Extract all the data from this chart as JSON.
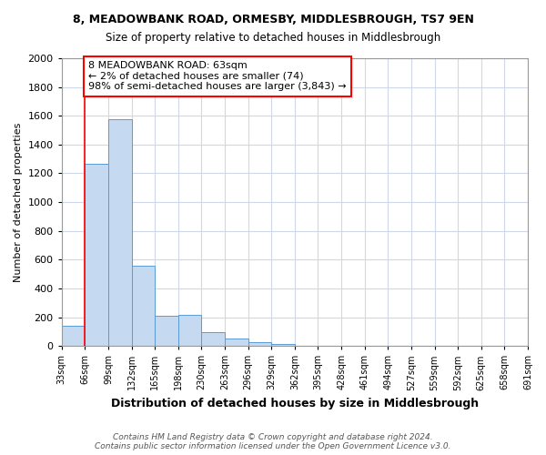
{
  "title_line1": "8, MEADOWBANK ROAD, ORMESBY, MIDDLESBROUGH, TS7 9EN",
  "title_line2": "Size of property relative to detached houses in Middlesbrough",
  "xlabel": "Distribution of detached houses by size in Middlesbrough",
  "ylabel": "Number of detached properties",
  "bar_values": [
    140,
    1265,
    1575,
    560,
    210,
    215,
    95,
    50,
    28,
    12,
    4,
    2,
    1,
    1,
    0,
    0,
    0,
    0,
    0,
    0
  ],
  "bin_labels": [
    "33sqm",
    "66sqm",
    "99sqm",
    "132sqm",
    "165sqm",
    "198sqm",
    "230sqm",
    "263sqm",
    "296sqm",
    "329sqm",
    "362sqm",
    "395sqm",
    "428sqm",
    "461sqm",
    "494sqm",
    "527sqm",
    "559sqm",
    "592sqm",
    "625sqm",
    "658sqm",
    "691sqm"
  ],
  "bar_color": "#c5d9f0",
  "bar_edge_color": "#5b9bd5",
  "grid_color": "#d0d8e8",
  "annotation_text": "8 MEADOWBANK ROAD: 63sqm\n← 2% of detached houses are smaller (74)\n98% of semi-detached houses are larger (3,843) →",
  "annotation_box_color": "white",
  "annotation_box_edge": "red",
  "vline_x_index": 1,
  "vline_color": "red",
  "ylim": [
    0,
    2000
  ],
  "yticks": [
    0,
    200,
    400,
    600,
    800,
    1000,
    1200,
    1400,
    1600,
    1800,
    2000
  ],
  "footer_line1": "Contains HM Land Registry data © Crown copyright and database right 2024.",
  "footer_line2": "Contains public sector information licensed under the Open Government Licence v3.0.",
  "background_color": "#ffffff"
}
